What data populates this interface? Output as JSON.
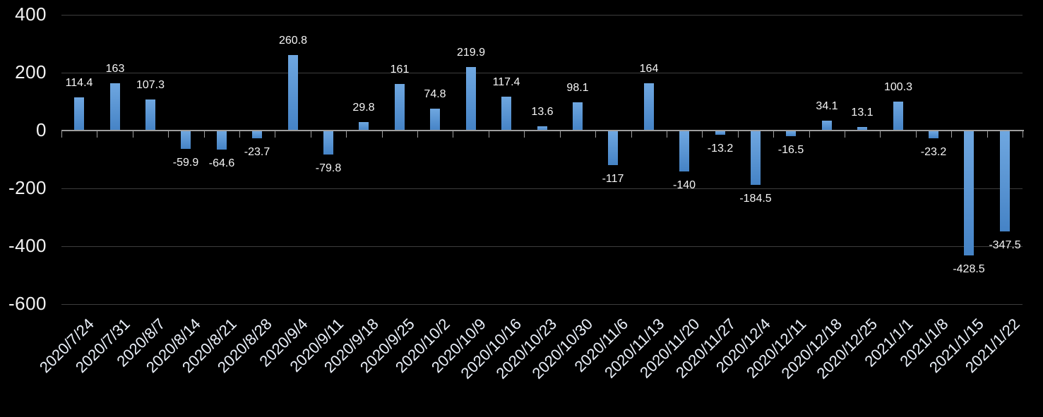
{
  "chart_data": {
    "type": "bar",
    "title": "",
    "xlabel": "",
    "ylabel": "",
    "categories": [
      "2020/7/24",
      "2020/7/31",
      "2020/8/7",
      "2020/8/14",
      "2020/8/21",
      "2020/8/28",
      "2020/9/4",
      "2020/9/11",
      "2020/9/18",
      "2020/9/25",
      "2020/10/2",
      "2020/10/9",
      "2020/10/16",
      "2020/10/23",
      "2020/10/30",
      "2020/11/6",
      "2020/11/13",
      "2020/11/20",
      "2020/11/27",
      "2020/12/4",
      "2020/12/11",
      "2020/12/18",
      "2020/12/25",
      "2021/1/1",
      "2021/1/8",
      "2021/1/15",
      "2021/1/22"
    ],
    "values": [
      114.4,
      163,
      107.3,
      -59.9,
      -64.6,
      -23.7,
      260.8,
      -79.8,
      29.8,
      161,
      74.8,
      219.9,
      117.4,
      13.6,
      98.1,
      -117,
      164,
      -140,
      -13.2,
      -184.5,
      -16.5,
      34.1,
      13.1,
      100.3,
      -23.2,
      -428.5,
      -347.5
    ],
    "labels": [
      "114.4",
      "163",
      "107.3",
      "-59.9",
      "-64.6",
      "-23.7",
      "260.8",
      "-79.8",
      "29.8",
      "161",
      "74.8",
      "219.9",
      "117.4",
      "13.6",
      "98.1",
      "-117",
      "164",
      "-140",
      "-13.2",
      "-184.5",
      "-16.5",
      "34.1",
      "13.1",
      "100.3",
      "-23.2",
      "-428.5",
      "-347.5"
    ],
    "y_axis": {
      "ticks": [
        400,
        200,
        0,
        -200,
        -400,
        -600
      ],
      "tick_labels": [
        "400",
        "200",
        "0",
        "-200",
        "-400",
        "-600"
      ],
      "min": -600,
      "max": 400
    },
    "legend": "none",
    "grid": "horizontal",
    "data_label_position": "outside-end",
    "colors": {
      "background": "#000000",
      "bar_gradient_top": "#6FA7E0",
      "bar_gradient_bottom": "#4583C6",
      "gridline": "#3D3D3D",
      "axis_line": "#9E9E9E",
      "data_label": "#F5F5F5",
      "y_tick_label": "#F2F2F2",
      "x_tick_label": "#E9EFF8"
    }
  }
}
